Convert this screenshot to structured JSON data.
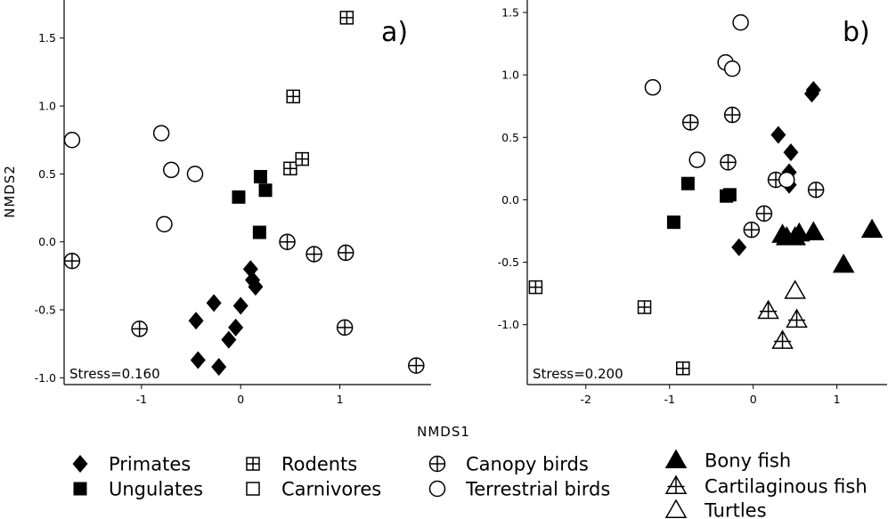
{
  "figure": {
    "xlabel": "NMDS1",
    "ylabel": "NMDS2"
  },
  "legend": [
    {
      "key": "primates",
      "label": "Primates",
      "marker": "diamond-filled"
    },
    {
      "key": "ungulates",
      "label": "Ungulates",
      "marker": "square-filled"
    },
    {
      "key": "rodents",
      "label": "Rodents",
      "marker": "square-grid"
    },
    {
      "key": "carnivores",
      "label": "Carnivores",
      "marker": "square-open"
    },
    {
      "key": "canopy_birds",
      "label": "Canopy birds",
      "marker": "circle-plus"
    },
    {
      "key": "terrestrial_birds",
      "label": "Terrestrial birds",
      "marker": "circle-open"
    },
    {
      "key": "bony_fish",
      "label": "Bony fish",
      "marker": "triangle-filled"
    },
    {
      "key": "cartilaginous_fish",
      "label": "Cartilaginous fish",
      "marker": "triangle-cross"
    },
    {
      "key": "turtles",
      "label": "Turtles",
      "marker": "triangle-open"
    }
  ],
  "chart_data": [
    {
      "type": "scatter",
      "panel_label": "a)",
      "stress_label": "Stress=0.160",
      "xlabel": "NMDS1",
      "ylabel": "NMDS2",
      "xlim": [
        -1.78,
        1.92
      ],
      "ylim": [
        -1.05,
        1.78
      ],
      "xticks": [
        -1,
        0,
        1
      ],
      "yticks": [
        -1.0,
        -0.5,
        0.0,
        0.5,
        1.0,
        1.5
      ],
      "series": [
        {
          "name": "Primates",
          "key": "primates",
          "points": [
            [
              0.1,
              -0.2
            ],
            [
              0.12,
              -0.28
            ],
            [
              0.15,
              -0.33
            ],
            [
              0.0,
              -0.47
            ],
            [
              -0.27,
              -0.45
            ],
            [
              -0.45,
              -0.58
            ],
            [
              -0.05,
              -0.63
            ],
            [
              -0.12,
              -0.72
            ],
            [
              -0.43,
              -0.87
            ],
            [
              -0.22,
              -0.92
            ]
          ]
        },
        {
          "name": "Ungulates",
          "key": "ungulates",
          "points": [
            [
              -0.02,
              0.33
            ],
            [
              0.2,
              0.48
            ],
            [
              0.25,
              0.38
            ],
            [
              0.19,
              0.07
            ]
          ]
        },
        {
          "name": "Rodents",
          "key": "rodents",
          "points": [
            [
              1.07,
              1.65
            ],
            [
              0.53,
              1.07
            ],
            [
              0.5,
              0.54
            ],
            [
              0.62,
              0.61
            ]
          ]
        },
        {
          "name": "Canopy birds",
          "key": "canopy_birds",
          "points": [
            [
              -1.7,
              -0.14
            ],
            [
              -1.02,
              -0.64
            ],
            [
              0.47,
              0.0
            ],
            [
              0.74,
              -0.09
            ],
            [
              1.06,
              -0.08
            ],
            [
              1.05,
              -0.63
            ],
            [
              1.77,
              -0.91
            ]
          ]
        },
        {
          "name": "Terrestrial birds",
          "key": "terrestrial_birds",
          "points": [
            [
              -1.7,
              0.75
            ],
            [
              -0.8,
              0.8
            ],
            [
              -0.7,
              0.53
            ],
            [
              -0.46,
              0.5
            ],
            [
              -0.77,
              0.13
            ]
          ]
        }
      ]
    },
    {
      "type": "scatter",
      "panel_label": "b)",
      "stress_label": "Stress=0.200",
      "xlabel": "NMDS1",
      "ylabel": "NMDS2",
      "xlim": [
        -2.7,
        1.6
      ],
      "ylim": [
        -1.48,
        1.6
      ],
      "xticks": [
        -2,
        -1,
        0,
        1
      ],
      "yticks": [
        -1.0,
        -0.5,
        0.0,
        0.5,
        1.0,
        1.5
      ],
      "series": [
        {
          "name": "Primates",
          "key": "primates",
          "points": [
            [
              0.72,
              0.88
            ],
            [
              0.7,
              0.85
            ],
            [
              0.3,
              0.52
            ],
            [
              0.45,
              0.38
            ],
            [
              0.43,
              0.22
            ],
            [
              0.43,
              0.12
            ],
            [
              -0.17,
              -0.38
            ]
          ]
        },
        {
          "name": "Ungulates",
          "key": "ungulates",
          "points": [
            [
              -0.78,
              0.13
            ],
            [
              -0.32,
              0.03
            ],
            [
              -0.28,
              0.04
            ],
            [
              -0.95,
              -0.18
            ]
          ]
        },
        {
          "name": "Rodents",
          "key": "rodents",
          "points": [
            [
              -2.6,
              -0.7
            ],
            [
              -1.3,
              -0.86
            ],
            [
              -0.84,
              -1.35
            ]
          ]
        },
        {
          "name": "Canopy birds",
          "key": "canopy_birds",
          "points": [
            [
              -0.75,
              0.62
            ],
            [
              -0.25,
              0.68
            ],
            [
              -0.3,
              0.3
            ],
            [
              0.27,
              0.16
            ],
            [
              0.75,
              0.08
            ],
            [
              0.13,
              -0.11
            ],
            [
              -0.02,
              -0.24
            ]
          ]
        },
        {
          "name": "Terrestrial birds",
          "key": "terrestrial_birds",
          "points": [
            [
              -0.15,
              1.42
            ],
            [
              -0.33,
              1.1
            ],
            [
              -0.25,
              1.05
            ],
            [
              -1.2,
              0.9
            ],
            [
              -0.67,
              0.32
            ],
            [
              0.4,
              0.16
            ]
          ]
        },
        {
          "name": "Bony fish",
          "key": "bony_fish",
          "points": [
            [
              0.35,
              -0.28
            ],
            [
              0.4,
              -0.3
            ],
            [
              0.5,
              -0.3
            ],
            [
              0.55,
              -0.27
            ],
            [
              0.72,
              -0.26
            ],
            [
              1.08,
              -0.52
            ],
            [
              1.42,
              -0.24
            ]
          ]
        },
        {
          "name": "Cartilaginous fish",
          "key": "cartilaginous_fish",
          "points": [
            [
              0.18,
              -0.89
            ],
            [
              0.52,
              -0.96
            ],
            [
              0.35,
              -1.13
            ]
          ]
        },
        {
          "name": "Turtles",
          "key": "turtles",
          "points": [
            [
              0.5,
              -0.73
            ]
          ]
        }
      ]
    }
  ]
}
